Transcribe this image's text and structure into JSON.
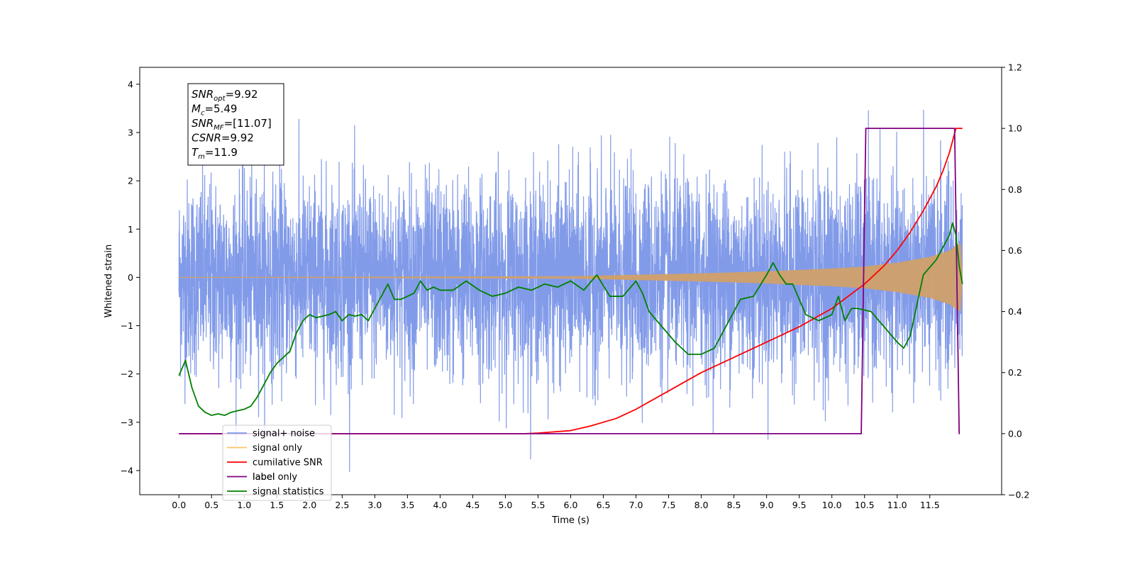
{
  "chart_data": {
    "type": "line",
    "xlabel": "Time (s)",
    "ylabel": "Whitened strain",
    "xlim": [
      -0.6,
      12.6
    ],
    "ylim": [
      -4.5,
      4.35
    ],
    "y2lim": [
      -0.2,
      1.2
    ],
    "x_ticks": [
      "0.0",
      "0.5",
      "1.0",
      "1.5",
      "2.0",
      "2.5",
      "3.0",
      "3.5",
      "4.0",
      "4.5",
      "5.0",
      "5.5",
      "6.0",
      "6.5",
      "7.0",
      "7.5",
      "8.0",
      "8.5",
      "9.0",
      "9.5",
      "10.0",
      "10.5",
      "11.0",
      "11.5"
    ],
    "y_ticks": [
      "4",
      "3",
      "2",
      "1",
      "0",
      "−1",
      "−2",
      "−3",
      "−4"
    ],
    "y2_ticks": [
      "1.2",
      "1.0",
      "0.8",
      "0.6",
      "0.4",
      "0.2",
      "0.0",
      "−0.2"
    ],
    "info_box": {
      "snr_opt": {
        "name": "SNR",
        "sub": "opt",
        "value": "=9.92"
      },
      "mc": {
        "name": "M",
        "sub": "c",
        "value": "=5.49"
      },
      "snr_mf": {
        "name": "SNR",
        "sub": "MF",
        "value": "=[11.07]"
      },
      "csnr": {
        "name": "CSNR",
        "value": "=9.92"
      },
      "tm": {
        "name": "T",
        "sub": "m",
        "value": "=11.9"
      }
    },
    "legend": [
      {
        "label": "signal+ noise",
        "color": "#7b96e8"
      },
      {
        "label": "signal only",
        "color": "#ffc266"
      },
      {
        "label": "cumilative SNR",
        "color": "#ff0000"
      },
      {
        "label": "label",
        "color": "#800080"
      },
      {
        "label": "signal statistics",
        "color": "#008000"
      }
    ],
    "legend_overlap_text": [
      "label only"
    ],
    "series": [
      {
        "name": "signal+ noise",
        "axis": "left",
        "color": "#7b96e8",
        "t_range": [
          0.0,
          12.0
        ],
        "samples": 4800,
        "std_approx": 1.0,
        "note_style": "dense noise"
      },
      {
        "name": "signal only",
        "axis": "left",
        "color": "#d0a06a",
        "t_range": [
          0.0,
          12.0
        ],
        "envelope": [
          [
            0.0,
            0.0
          ],
          [
            6.0,
            0.02
          ],
          [
            7.0,
            0.05
          ],
          [
            8.0,
            0.08
          ],
          [
            9.0,
            0.12
          ],
          [
            10.0,
            0.18
          ],
          [
            10.5,
            0.22
          ],
          [
            11.0,
            0.3
          ],
          [
            11.5,
            0.42
          ],
          [
            11.8,
            0.55
          ],
          [
            11.9,
            0.65
          ],
          [
            11.97,
            0.7
          ],
          [
            12.0,
            0.0
          ]
        ]
      },
      {
        "name": "cumilative SNR",
        "axis": "right",
        "color": "#ff0000",
        "x": [
          0.0,
          5.0,
          5.3,
          5.5,
          6.0,
          6.3,
          6.7,
          7.0,
          7.5,
          8.0,
          8.5,
          9.0,
          9.5,
          10.0,
          10.5,
          10.8,
          11.0,
          11.2,
          11.4,
          11.6,
          11.7,
          11.8,
          11.85,
          11.9,
          11.92,
          12.0
        ],
        "y": [
          0.0,
          0.0,
          0.0,
          0.002,
          0.01,
          0.025,
          0.05,
          0.08,
          0.14,
          0.2,
          0.25,
          0.3,
          0.35,
          0.41,
          0.49,
          0.55,
          0.6,
          0.66,
          0.73,
          0.81,
          0.86,
          0.92,
          0.96,
          1.0,
          1.0,
          1.0
        ]
      },
      {
        "name": "label",
        "axis": "right",
        "color": "#800080",
        "x": [
          0.0,
          10.45,
          10.52,
          11.88,
          11.95,
          11.96
        ],
        "y": [
          0.0,
          0.0,
          1.0,
          1.0,
          0.0,
          0.0
        ]
      },
      {
        "name": "signal statistics",
        "axis": "right",
        "color": "#008000",
        "x": [
          0.0,
          0.1,
          0.2,
          0.3,
          0.4,
          0.5,
          0.6,
          0.7,
          0.8,
          0.9,
          1.0,
          1.1,
          1.2,
          1.3,
          1.4,
          1.5,
          1.6,
          1.7,
          1.8,
          1.9,
          2.0,
          2.1,
          2.2,
          2.3,
          2.4,
          2.5,
          2.6,
          2.7,
          2.8,
          2.9,
          3.0,
          3.1,
          3.2,
          3.3,
          3.4,
          3.5,
          3.6,
          3.7,
          3.8,
          3.9,
          4.0,
          4.2,
          4.4,
          4.6,
          4.8,
          5.0,
          5.2,
          5.4,
          5.6,
          5.8,
          6.0,
          6.2,
          6.4,
          6.6,
          6.8,
          7.0,
          7.1,
          7.2,
          7.4,
          7.6,
          7.8,
          8.0,
          8.2,
          8.4,
          8.6,
          8.8,
          9.0,
          9.1,
          9.2,
          9.3,
          9.4,
          9.6,
          9.8,
          10.0,
          10.1,
          10.2,
          10.3,
          10.4,
          10.6,
          10.8,
          11.0,
          11.1,
          11.2,
          11.4,
          11.6,
          11.8,
          11.85,
          11.9,
          11.95,
          12.0
        ],
        "y": [
          0.19,
          0.24,
          0.15,
          0.09,
          0.07,
          0.06,
          0.065,
          0.06,
          0.07,
          0.075,
          0.08,
          0.09,
          0.12,
          0.16,
          0.2,
          0.23,
          0.25,
          0.27,
          0.33,
          0.37,
          0.39,
          0.38,
          0.385,
          0.39,
          0.4,
          0.37,
          0.39,
          0.385,
          0.39,
          0.37,
          0.41,
          0.45,
          0.49,
          0.44,
          0.44,
          0.45,
          0.46,
          0.5,
          0.47,
          0.48,
          0.47,
          0.47,
          0.5,
          0.47,
          0.45,
          0.46,
          0.48,
          0.47,
          0.49,
          0.48,
          0.5,
          0.47,
          0.52,
          0.45,
          0.45,
          0.5,
          0.46,
          0.4,
          0.35,
          0.3,
          0.26,
          0.26,
          0.28,
          0.36,
          0.44,
          0.45,
          0.52,
          0.56,
          0.52,
          0.49,
          0.49,
          0.39,
          0.37,
          0.39,
          0.45,
          0.37,
          0.41,
          0.41,
          0.4,
          0.35,
          0.3,
          0.28,
          0.32,
          0.52,
          0.57,
          0.65,
          0.69,
          0.65,
          0.55,
          0.49
        ]
      }
    ]
  }
}
